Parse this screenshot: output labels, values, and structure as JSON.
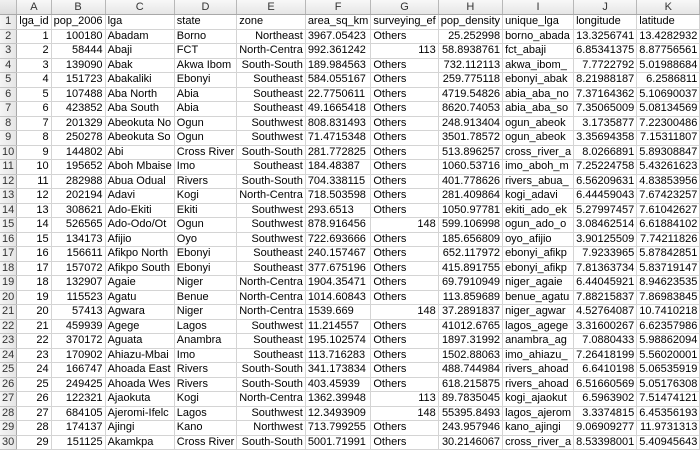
{
  "columns": [
    "A",
    "B",
    "C",
    "D",
    "E",
    "F",
    "G",
    "H",
    "I",
    "J",
    "K"
  ],
  "header_row": [
    "lga_id",
    "pop_2006",
    "lga",
    "state",
    "zone",
    "area_sq_km",
    "surveying_ef",
    "pop_density",
    "unique_lga",
    "longitude",
    "latitude"
  ],
  "rows": [
    [
      "1",
      "100180",
      "Abadam",
      "Borno",
      "Northeast",
      "3967.05423",
      "Others",
      "25.252998",
      "borno_abada",
      "13.3256741",
      "13.4282932"
    ],
    [
      "2",
      "58444",
      "Abaji",
      "FCT",
      "North-Centra",
      "992.361242",
      "113",
      "58.8938761",
      "fct_abaji",
      "6.85341375",
      "8.87756561"
    ],
    [
      "3",
      "139090",
      "Abak",
      "Akwa Ibom",
      "South-South",
      "189.984563",
      "Others",
      "732.112113",
      "akwa_ibom_",
      "7.7722792",
      "5.01988684"
    ],
    [
      "4",
      "151723",
      "Abakaliki",
      "Ebonyi",
      "Southeast",
      "584.055167",
      "Others",
      "259.775118",
      "ebonyi_abak",
      "8.21988187",
      "6.2586811"
    ],
    [
      "5",
      "107488",
      "Aba North",
      "Abia",
      "Southeast",
      "22.7750611",
      "Others",
      "4719.54826",
      "abia_aba_no",
      "7.37164362",
      "5.10690037"
    ],
    [
      "6",
      "423852",
      "Aba South",
      "Abia",
      "Southeast",
      "49.1665418",
      "Others",
      "8620.74053",
      "abia_aba_so",
      "7.35065009",
      "5.08134569"
    ],
    [
      "7",
      "201329",
      "Abeokuta No",
      "Ogun",
      "Southwest",
      "808.831493",
      "Others",
      "248.913404",
      "ogun_abeok",
      "3.1735877",
      "7.22300486"
    ],
    [
      "8",
      "250278",
      "Abeokuta So",
      "Ogun",
      "Southwest",
      "71.4715348",
      "Others",
      "3501.78572",
      "ogun_abeok",
      "3.35694358",
      "7.15311807"
    ],
    [
      "9",
      "144802",
      "Abi",
      "Cross River",
      "South-South",
      "281.772825",
      "Others",
      "513.896257",
      "cross_river_a",
      "8.0266891",
      "5.89308847"
    ],
    [
      "10",
      "195652",
      "Aboh Mbaise",
      "Imo",
      "Southeast",
      "184.48387",
      "Others",
      "1060.53716",
      "imo_aboh_m",
      "7.25224758",
      "5.43261623"
    ],
    [
      "11",
      "282988",
      "Abua Odual",
      "Rivers",
      "South-South",
      "704.338115",
      "Others",
      "401.778626",
      "rivers_abua_",
      "6.56209631",
      "4.83853956"
    ],
    [
      "12",
      "202194",
      "Adavi",
      "Kogi",
      "North-Centra",
      "718.503598",
      "Others",
      "281.409864",
      "kogi_adavi",
      "6.44459043",
      "7.67423257"
    ],
    [
      "13",
      "308621",
      "Ado-Ekiti",
      "Ekiti",
      "Southwest",
      "293.6513",
      "Others",
      "1050.97781",
      "ekiti_ado_ek",
      "5.27997457",
      "7.61042627"
    ],
    [
      "14",
      "526565",
      "Ado-Odo/Ot",
      "Ogun",
      "Southwest",
      "878.916456",
      "148",
      "599.106998",
      "ogun_ado_o",
      "3.08462514",
      "6.61884102"
    ],
    [
      "15",
      "134173",
      "Afijio",
      "Oyo",
      "Southwest",
      "722.693666",
      "Others",
      "185.656809",
      "oyo_afijio",
      "3.90125509",
      "7.74211826"
    ],
    [
      "16",
      "156611",
      "Afikpo North",
      "Ebonyi",
      "Southeast",
      "240.157467",
      "Others",
      "652.117972",
      "ebonyi_afikp",
      "7.9233965",
      "5.87842851"
    ],
    [
      "17",
      "157072",
      "Afikpo South",
      "Ebonyi",
      "Southeast",
      "377.675196",
      "Others",
      "415.891755",
      "ebonyi_afikp",
      "7.81363734",
      "5.83719147"
    ],
    [
      "18",
      "132907",
      "Agaie",
      "Niger",
      "North-Centra",
      "1904.35471",
      "Others",
      "69.7910949",
      "niger_agaie",
      "6.44045921",
      "8.94623535"
    ],
    [
      "19",
      "115523",
      "Agatu",
      "Benue",
      "North-Centra",
      "1014.60843",
      "Others",
      "113.859689",
      "benue_agatu",
      "7.88215837",
      "7.86983845"
    ],
    [
      "20",
      "57413",
      "Agwara",
      "Niger",
      "North-Centra",
      "1539.669",
      "148",
      "37.2891837",
      "niger_agwar",
      "4.52764087",
      "10.7410218"
    ],
    [
      "21",
      "459939",
      "Agege",
      "Lagos",
      "Southwest",
      "11.214557",
      "Others",
      "41012.6765",
      "lagos_agege",
      "3.31600267",
      "6.62357986"
    ],
    [
      "22",
      "370172",
      "Aguata",
      "Anambra",
      "Southeast",
      "195.102574",
      "Others",
      "1897.31992",
      "anambra_ag",
      "7.0880433",
      "5.98862094"
    ],
    [
      "23",
      "170902",
      "Ahiazu-Mbai",
      "Imo",
      "Southeast",
      "113.716283",
      "Others",
      "1502.88063",
      "imo_ahiazu_",
      "7.26418199",
      "5.56020001"
    ],
    [
      "24",
      "166747",
      "Ahoada East",
      "Rivers",
      "South-South",
      "341.173834",
      "Others",
      "488.744984",
      "rivers_ahoad",
      "6.6410198",
      "5.06535919"
    ],
    [
      "25",
      "249425",
      "Ahoada Wes",
      "Rivers",
      "South-South",
      "403.45939",
      "Others",
      "618.215875",
      "rivers_ahoad",
      "6.51660569",
      "5.05176308"
    ],
    [
      "26",
      "122321",
      "Ajaokuta",
      "Kogi",
      "North-Centra",
      "1362.39948",
      "113",
      "89.7835045",
      "kogi_ajaokut",
      "6.5963902",
      "7.51474121"
    ],
    [
      "27",
      "684105",
      "Ajeromi-Ifelc",
      "Lagos",
      "Southwest",
      "12.3493909",
      "148",
      "55395.8493",
      "lagos_ajerom",
      "3.3374815",
      "6.45356193"
    ],
    [
      "28",
      "174137",
      "Ajingi",
      "Kano",
      "Northwest",
      "713.799255",
      "Others",
      "243.957946",
      "kano_ajingi",
      "9.06909277",
      "11.9731313"
    ],
    [
      "29",
      "151125",
      "Akamkpa",
      "Cross River",
      "South-South",
      "5001.71991",
      "Others",
      "30.2146067",
      "cross_river_a",
      "8.53398001",
      "5.40945643"
    ],
    [
      "30",
      "211359",
      "Akinyele",
      "Oyo",
      "Southwest",
      "518.870311",
      "Others",
      "407.344563",
      "oyo_akinyele",
      "3.93139439",
      "7.56243229"
    ]
  ]
}
